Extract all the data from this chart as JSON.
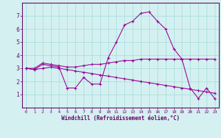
{
  "xlabel": "Windchill (Refroidissement éolien,°C)",
  "x": [
    0,
    1,
    2,
    3,
    4,
    5,
    6,
    7,
    8,
    9,
    10,
    11,
    12,
    13,
    14,
    15,
    16,
    17,
    18,
    19,
    20,
    21,
    22,
    23
  ],
  "line1": [
    3.0,
    2.9,
    3.3,
    3.2,
    3.1,
    1.5,
    1.5,
    2.3,
    1.8,
    1.8,
    3.8,
    5.0,
    6.3,
    6.6,
    7.2,
    7.3,
    6.6,
    6.0,
    4.5,
    3.7,
    1.5,
    0.7,
    1.5,
    0.7
  ],
  "line2": [
    3.0,
    3.0,
    3.4,
    3.3,
    3.2,
    3.1,
    3.1,
    3.2,
    3.3,
    3.3,
    3.4,
    3.5,
    3.6,
    3.6,
    3.7,
    3.7,
    3.7,
    3.7,
    3.7,
    3.7,
    3.7,
    3.7,
    3.7,
    3.7
  ],
  "line3": [
    3.0,
    2.9,
    3.0,
    3.1,
    3.0,
    2.9,
    2.8,
    2.7,
    2.6,
    2.5,
    2.4,
    2.3,
    2.2,
    2.1,
    2.0,
    1.9,
    1.8,
    1.7,
    1.6,
    1.5,
    1.4,
    1.3,
    1.2,
    1.1
  ],
  "line_color": "#990099",
  "bg_color": "#d4f0f0",
  "grid_color": "#aadddd",
  "axis_color": "#660066",
  "text_color": "#660066",
  "ylim": [
    0,
    8
  ],
  "xlim": [
    -0.5,
    23.5
  ],
  "yticks": [
    1,
    2,
    3,
    4,
    5,
    6,
    7
  ],
  "xticks": [
    0,
    1,
    2,
    3,
    4,
    5,
    6,
    7,
    8,
    9,
    10,
    11,
    12,
    13,
    14,
    15,
    16,
    17,
    18,
    19,
    20,
    21,
    22,
    23
  ]
}
